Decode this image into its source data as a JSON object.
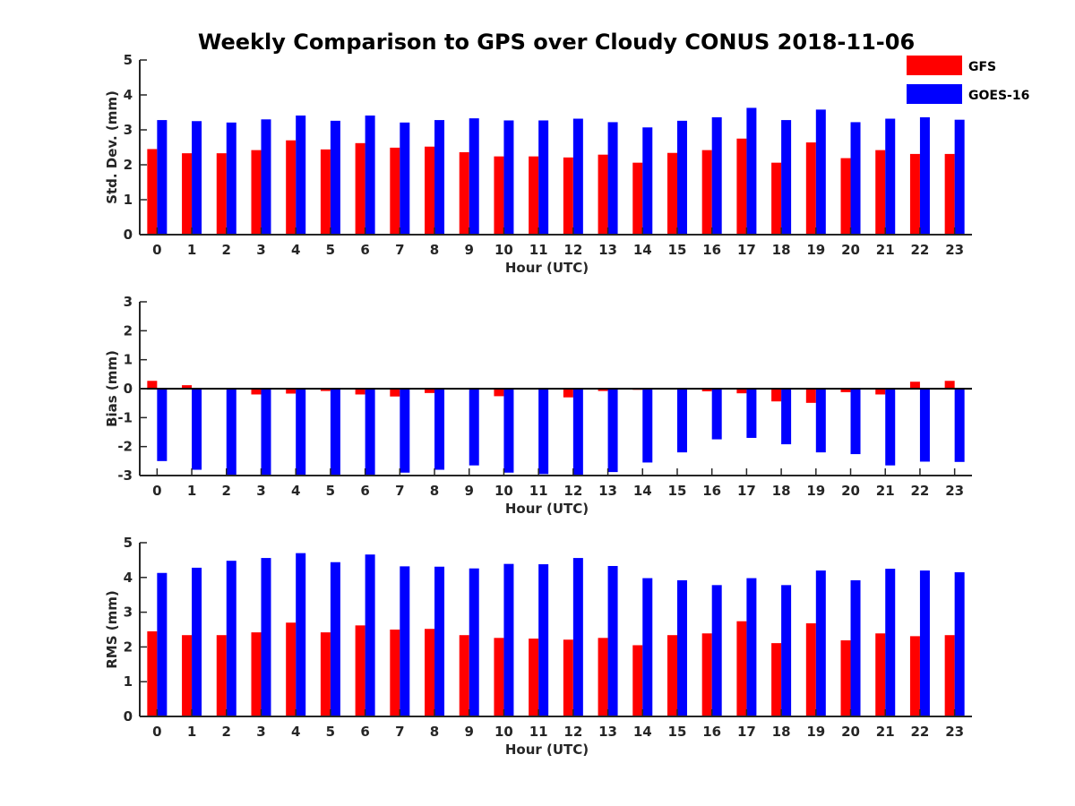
{
  "title": "Weekly Comparison to GPS over Cloudy CONUS 2018-11-06",
  "colors": {
    "GFS": "#ff0000",
    "GOES-16": "#0000ff"
  },
  "legend": {
    "placement": "top-right",
    "entries": [
      {
        "name": "GFS",
        "color": "#ff0000"
      },
      {
        "name": "GOES-16",
        "color": "#0000ff"
      }
    ]
  },
  "chart_data": [
    {
      "type": "bar",
      "xlabel": "Hour (UTC)",
      "ylabel": "Std. Dev. (mm)",
      "ylim": [
        0,
        5
      ],
      "yticks": [
        0,
        1,
        2,
        3,
        4,
        5
      ],
      "categories": [
        "0",
        "1",
        "2",
        "3",
        "4",
        "5",
        "6",
        "7",
        "8",
        "9",
        "10",
        "11",
        "12",
        "13",
        "14",
        "15",
        "16",
        "17",
        "18",
        "19",
        "20",
        "21",
        "22",
        "23"
      ],
      "series": [
        {
          "name": "GFS",
          "values": [
            2.45,
            2.33,
            2.33,
            2.42,
            2.7,
            2.44,
            2.62,
            2.49,
            2.52,
            2.36,
            2.24,
            2.24,
            2.21,
            2.29,
            2.06,
            2.34,
            2.42,
            2.75,
            2.06,
            2.64,
            2.19,
            2.42,
            2.31,
            2.31
          ]
        },
        {
          "name": "GOES-16",
          "values": [
            3.28,
            3.25,
            3.21,
            3.3,
            3.41,
            3.26,
            3.41,
            3.21,
            3.28,
            3.33,
            3.27,
            3.27,
            3.32,
            3.22,
            3.07,
            3.26,
            3.36,
            3.63,
            3.28,
            3.58,
            3.22,
            3.32,
            3.36,
            3.29
          ]
        }
      ]
    },
    {
      "type": "bar",
      "xlabel": "Hour (UTC)",
      "ylabel": "Bias (mm)",
      "ylim": [
        -3,
        3
      ],
      "yticks": [
        -3,
        -2,
        -1,
        0,
        1,
        2,
        3
      ],
      "categories": [
        "0",
        "1",
        "2",
        "3",
        "4",
        "5",
        "6",
        "7",
        "8",
        "9",
        "10",
        "11",
        "12",
        "13",
        "14",
        "15",
        "16",
        "17",
        "18",
        "19",
        "20",
        "21",
        "22",
        "23"
      ],
      "series": [
        {
          "name": "GFS",
          "values": [
            0.27,
            0.12,
            -0.03,
            -0.2,
            -0.17,
            -0.08,
            -0.2,
            -0.27,
            -0.15,
            -0.02,
            -0.26,
            -0.03,
            -0.3,
            -0.08,
            -0.04,
            -0.03,
            -0.09,
            -0.16,
            -0.44,
            -0.49,
            -0.12,
            -0.2,
            0.24,
            0.27
          ]
        },
        {
          "name": "GOES-16",
          "values": [
            -2.5,
            -2.8,
            -3.0,
            -3.0,
            -3.0,
            -3.0,
            -3.0,
            -2.9,
            -2.8,
            -2.65,
            -2.9,
            -2.95,
            -3.0,
            -2.88,
            -2.55,
            -2.2,
            -1.75,
            -1.7,
            -1.92,
            -2.2,
            -2.26,
            -2.65,
            -2.52,
            -2.53
          ]
        }
      ]
    },
    {
      "type": "bar",
      "xlabel": "Hour (UTC)",
      "ylabel": "RMS (mm)",
      "ylim": [
        0,
        5
      ],
      "yticks": [
        0,
        1,
        2,
        3,
        4,
        5
      ],
      "categories": [
        "0",
        "1",
        "2",
        "3",
        "4",
        "5",
        "6",
        "7",
        "8",
        "9",
        "10",
        "11",
        "12",
        "13",
        "14",
        "15",
        "16",
        "17",
        "18",
        "19",
        "20",
        "21",
        "22",
        "23"
      ],
      "series": [
        {
          "name": "GFS",
          "values": [
            2.45,
            2.34,
            2.34,
            2.42,
            2.7,
            2.42,
            2.62,
            2.5,
            2.52,
            2.34,
            2.26,
            2.24,
            2.21,
            2.26,
            2.05,
            2.34,
            2.39,
            2.74,
            2.11,
            2.68,
            2.19,
            2.39,
            2.31,
            2.34
          ]
        },
        {
          "name": "GOES-16",
          "values": [
            4.13,
            4.28,
            4.48,
            4.56,
            4.7,
            4.44,
            4.66,
            4.32,
            4.31,
            4.26,
            4.39,
            4.38,
            4.56,
            4.33,
            3.98,
            3.92,
            3.78,
            3.98,
            3.78,
            4.2,
            3.92,
            4.25,
            4.2,
            4.15
          ]
        }
      ]
    }
  ]
}
